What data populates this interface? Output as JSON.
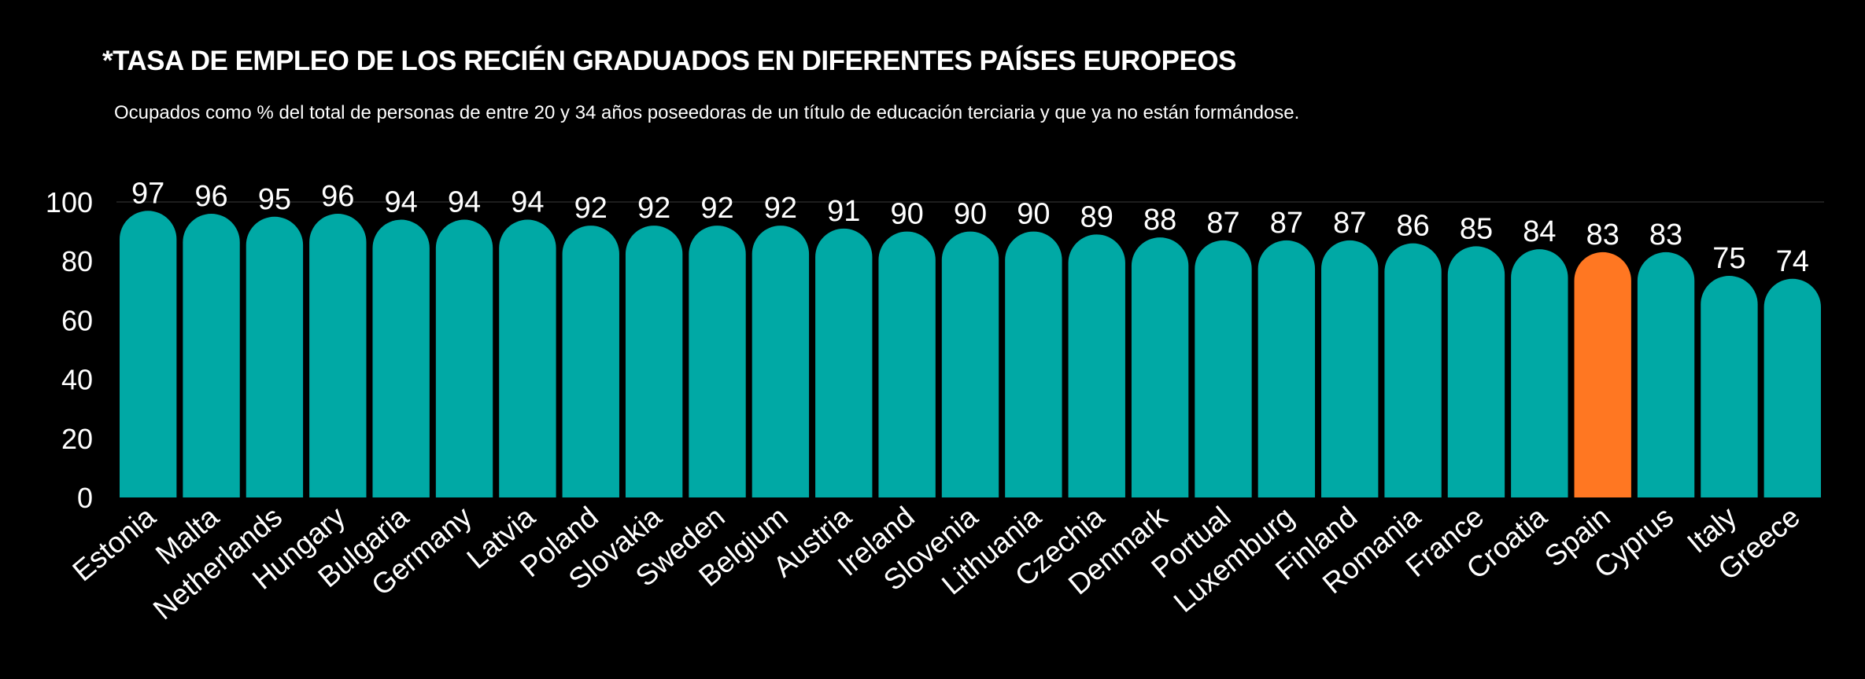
{
  "title": "*TASA DE EMPLEO DE LOS RECIÉN GRADUADOS EN DIFERENTES PAÍSES EUROPEOS",
  "subtitle": "Ocupados como % del total de personas de entre 20 y 34 años poseedoras de un título de educación terciaria y que ya no están formándose.",
  "colors": {
    "background": "#000000",
    "bar": "#00A9A5",
    "highlight": "#FF7722",
    "text": "#FFFFFF",
    "grid": "#3a3a3a"
  },
  "chart_data": {
    "type": "bar",
    "title": "*TASA DE EMPLEO DE LOS RECIÉN GRADUADOS EN DIFERENTES PAÍSES EUROPEOS",
    "subtitle": "Ocupados como % del total de personas de entre 20 y 34 años poseedoras de un título de educación terciaria y que ya no están formándose.",
    "xlabel": "",
    "ylabel": "",
    "categories": [
      "Estonia",
      "Malta",
      "Netherlands",
      "Hungary",
      "Bulgaria",
      "Germany",
      "Latvia",
      "Poland",
      "Slovakia",
      "Sweden",
      "Belgium",
      "Austria",
      "Ireland",
      "Slovenia",
      "Lithuania",
      "Czechia",
      "Denmark",
      "Portual",
      "Luxemburg",
      "Finland",
      "Romania",
      "France",
      "Croatia",
      "Spain",
      "Cyprus",
      "Italy",
      "Greece"
    ],
    "values": [
      97,
      96,
      95,
      96,
      94,
      94,
      94,
      92,
      92,
      92,
      92,
      91,
      90,
      90,
      90,
      89,
      88,
      87,
      87,
      87,
      86,
      85,
      84,
      83,
      83,
      75,
      74
    ],
    "highlight": "Spain",
    "ylim": [
      0,
      100
    ],
    "yticks": [
      0,
      20,
      40,
      60,
      80,
      100
    ],
    "grid": "top line at 100",
    "data_labels": true,
    "legend": "none"
  }
}
